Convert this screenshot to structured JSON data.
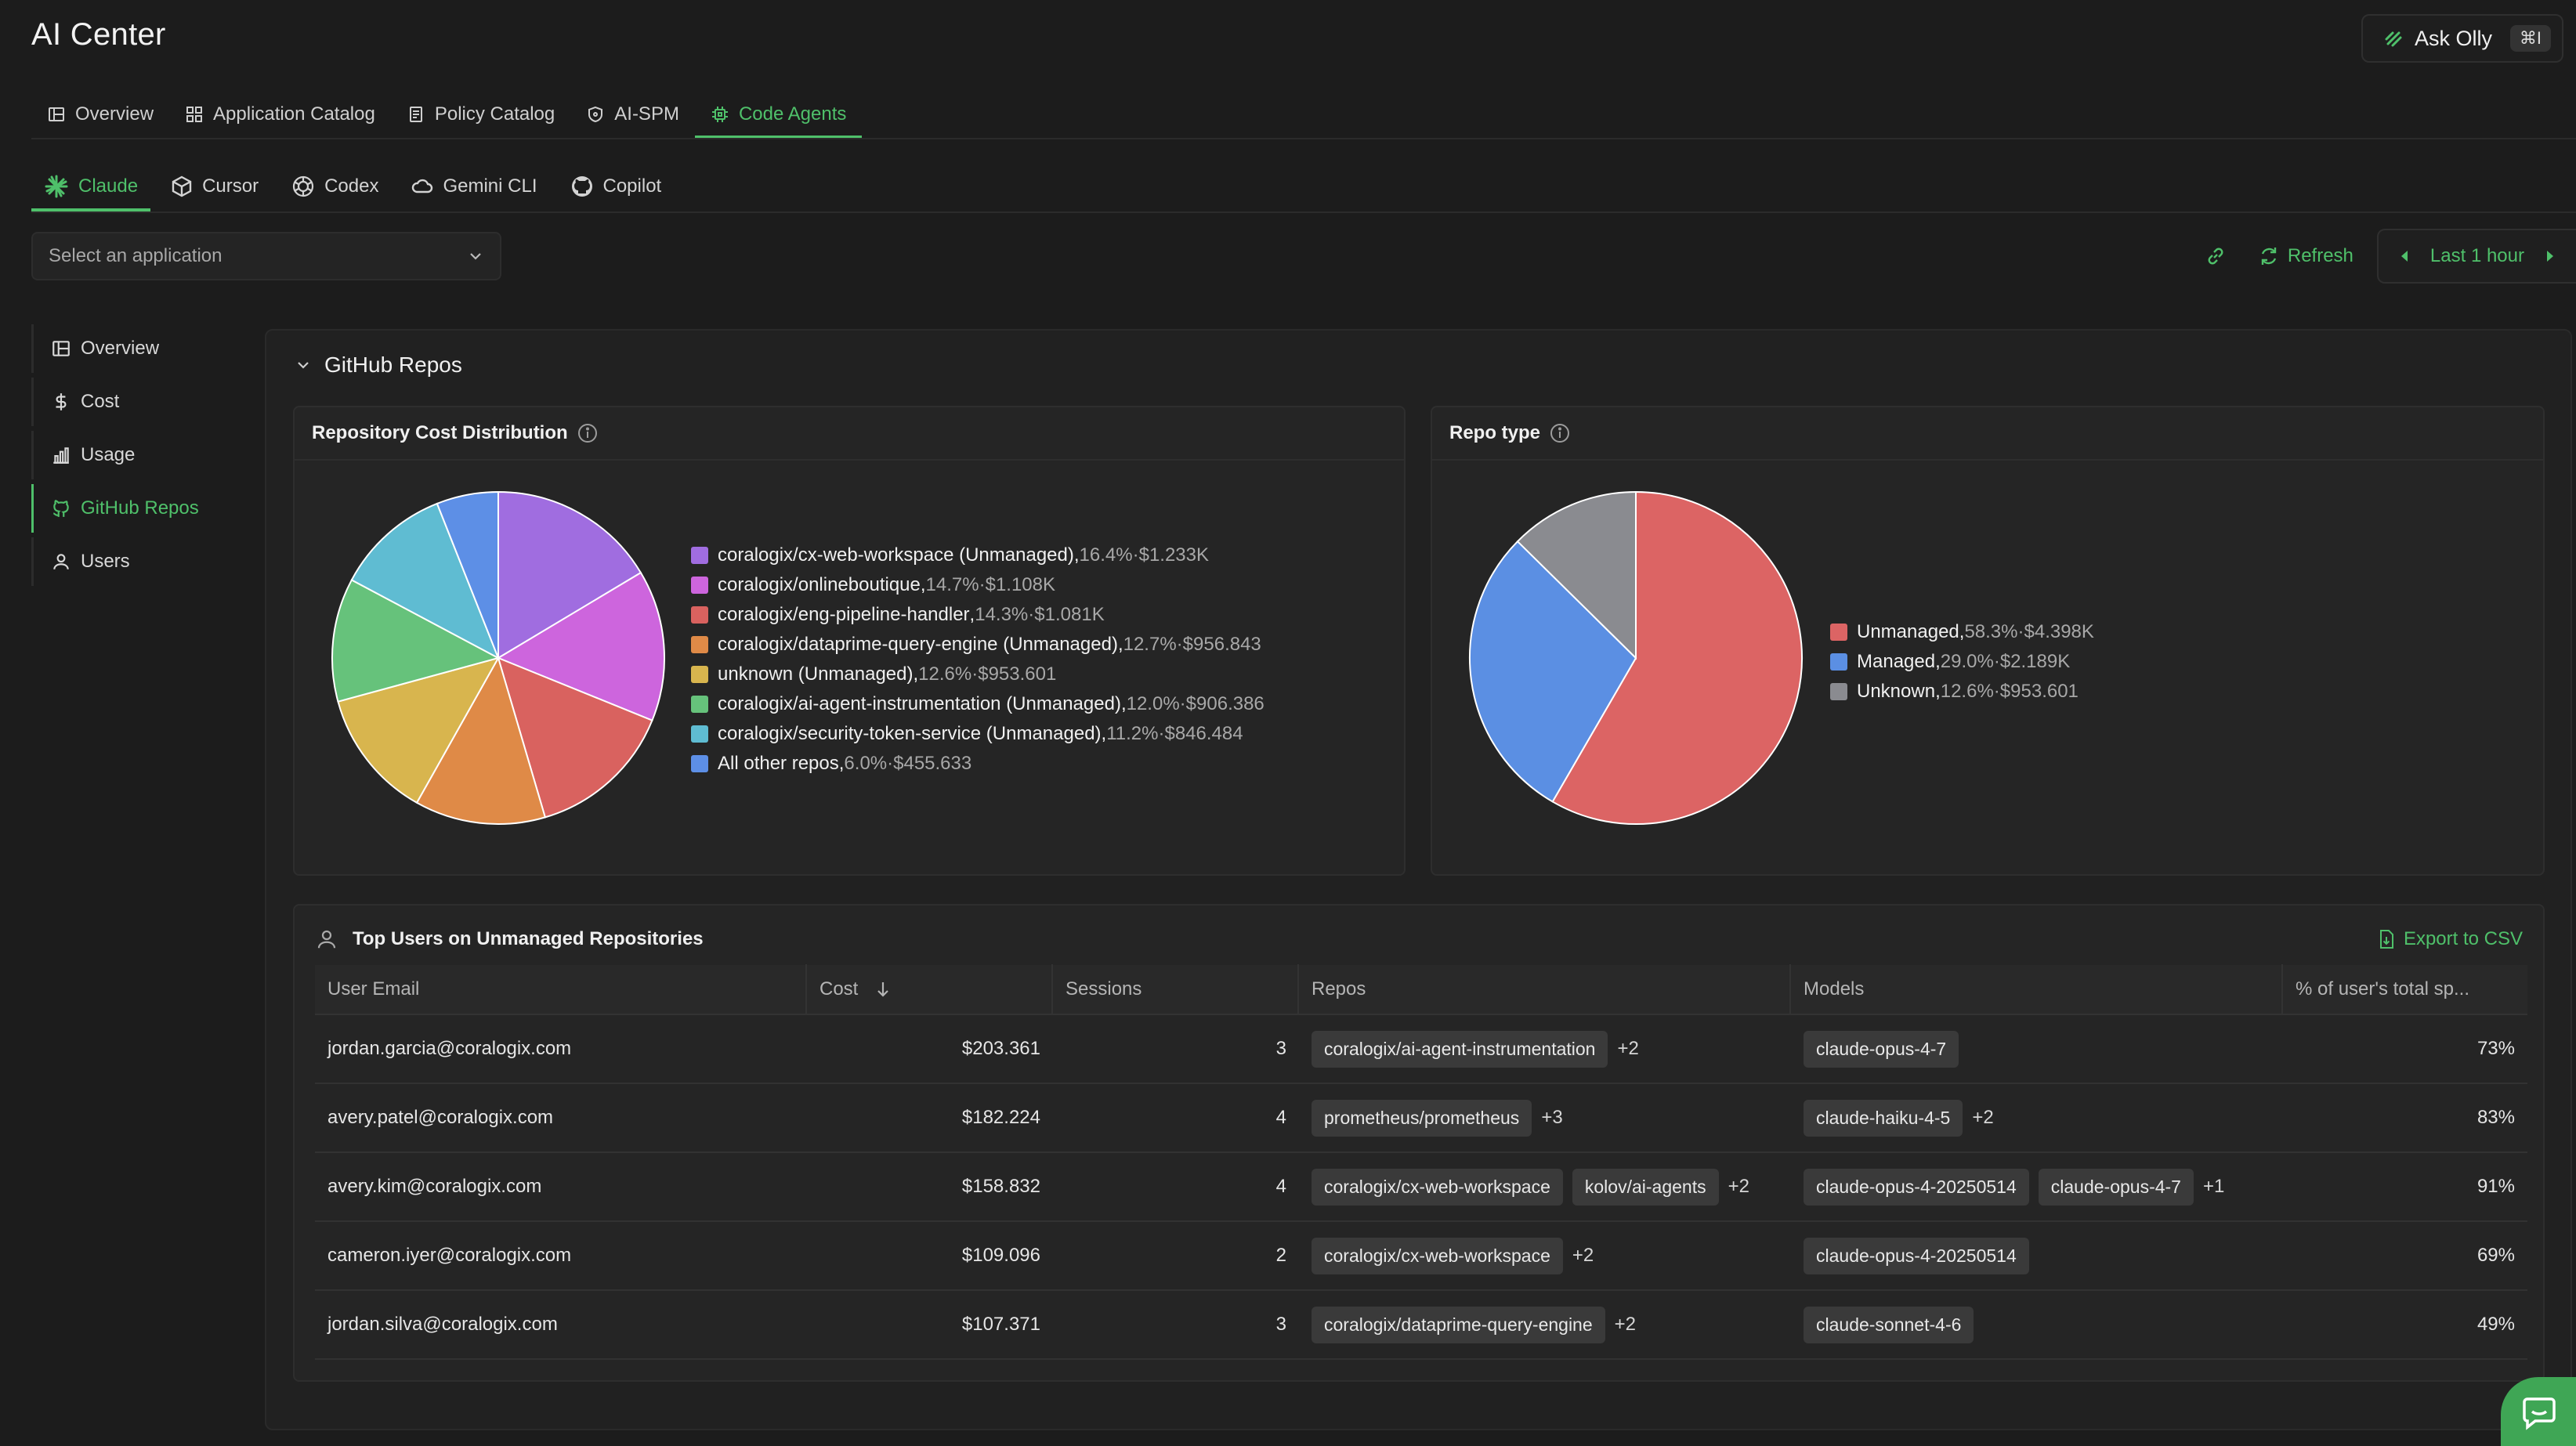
{
  "app": {
    "title": "AI Center"
  },
  "ask_olly": {
    "label": "Ask Olly",
    "shortcut": "⌘I"
  },
  "top_tabs": [
    {
      "label": "Overview",
      "icon": "layout-icon",
      "active": false
    },
    {
      "label": "Application Catalog",
      "icon": "grid-icon",
      "active": false
    },
    {
      "label": "Policy Catalog",
      "icon": "document-icon",
      "active": false
    },
    {
      "label": "AI-SPM",
      "icon": "shield-icon",
      "active": false
    },
    {
      "label": "Code Agents",
      "icon": "chip-icon",
      "active": true
    }
  ],
  "agent_tabs": [
    {
      "label": "Claude",
      "icon": "claude-icon",
      "active": true
    },
    {
      "label": "Cursor",
      "icon": "cube-icon",
      "active": false
    },
    {
      "label": "Codex",
      "icon": "openai-icon",
      "active": false
    },
    {
      "label": "Gemini CLI",
      "icon": "cloud-icon",
      "active": false
    },
    {
      "label": "Copilot",
      "icon": "github-icon",
      "active": false
    }
  ],
  "app_select": {
    "placeholder": "Select an application"
  },
  "toolbar": {
    "refresh_label": "Refresh",
    "time_range": "Last 1 hour"
  },
  "left_nav": [
    {
      "label": "Overview",
      "icon": "layout-icon",
      "active": false
    },
    {
      "label": "Cost",
      "icon": "dollar-icon",
      "active": false
    },
    {
      "label": "Usage",
      "icon": "bar-chart-icon",
      "active": false
    },
    {
      "label": "GitHub Repos",
      "icon": "github-icon",
      "active": true
    },
    {
      "label": "Users",
      "icon": "user-icon",
      "active": false
    }
  ],
  "section": {
    "title": "GitHub Repos"
  },
  "cost_chart": {
    "title": "Repository Cost Distribution"
  },
  "type_chart": {
    "title": "Repo type"
  },
  "chart_data": [
    {
      "type": "pie",
      "title": "Repository Cost Distribution",
      "slices": [
        {
          "label": "coralogix/cx-web-workspace (Unmanaged)",
          "pct": 16.4,
          "value": "$1.233K",
          "color": "#a06de0"
        },
        {
          "label": "coralogix/onlineboutique",
          "pct": 14.7,
          "value": "$1.108K",
          "color": "#cd65dd"
        },
        {
          "label": "coralogix/eng-pipeline-handler",
          "pct": 14.3,
          "value": "$1.081K",
          "color": "#d9625f"
        },
        {
          "label": "coralogix/dataprime-query-engine (Unmanaged)",
          "pct": 12.7,
          "value": "$956.843",
          "color": "#df8a47"
        },
        {
          "label": "unknown (Unmanaged)",
          "pct": 12.6,
          "value": "$953.601",
          "color": "#d8b54e"
        },
        {
          "label": "coralogix/ai-agent-instrumentation (Unmanaged)",
          "pct": 12.0,
          "value": "$906.386",
          "color": "#66c27b"
        },
        {
          "label": "coralogix/security-token-service (Unmanaged)",
          "pct": 11.2,
          "value": "$846.484",
          "color": "#5fbcd2"
        },
        {
          "label": "All other repos",
          "pct": 6.0,
          "value": "$455.633",
          "color": "#5d8fe6"
        }
      ]
    },
    {
      "type": "pie",
      "title": "Repo type",
      "slices": [
        {
          "label": "Unmanaged",
          "pct": 58.3,
          "value": "$4.398K",
          "color": "#dc6464"
        },
        {
          "label": "Managed",
          "pct": 29.0,
          "value": "$2.189K",
          "color": "#5b8fe3"
        },
        {
          "label": "Unknown",
          "pct": 12.6,
          "value": "$953.601",
          "color": "#8a8b90"
        }
      ]
    }
  ],
  "top_users": {
    "title": "Top Users on Unmanaged Repositories",
    "export_label": "Export to CSV",
    "columns": [
      "User Email",
      "Cost",
      "Sessions",
      "Repos",
      "Models",
      "% of user's total sp..."
    ],
    "rows": [
      {
        "email": "jordan.garcia@coralogix.com",
        "cost": "$203.361",
        "sessions": "3",
        "repos": [
          "coralogix/ai-agent-instrumentation"
        ],
        "repos_more": "+2",
        "models": [
          "claude-opus-4-7"
        ],
        "models_more": "",
        "pct": "73%"
      },
      {
        "email": "avery.patel@coralogix.com",
        "cost": "$182.224",
        "sessions": "4",
        "repos": [
          "prometheus/prometheus"
        ],
        "repos_more": "+3",
        "models": [
          "claude-haiku-4-5"
        ],
        "models_more": "+2",
        "pct": "83%"
      },
      {
        "email": "avery.kim@coralogix.com",
        "cost": "$158.832",
        "sessions": "4",
        "repos": [
          "coralogix/cx-web-workspace",
          "kolov/ai-agents"
        ],
        "repos_more": "+2",
        "models": [
          "claude-opus-4-20250514",
          "claude-opus-4-7"
        ],
        "models_more": "+1",
        "pct": "91%"
      },
      {
        "email": "cameron.iyer@coralogix.com",
        "cost": "$109.096",
        "sessions": "2",
        "repos": [
          "coralogix/cx-web-workspace"
        ],
        "repos_more": "+2",
        "models": [
          "claude-opus-4-20250514"
        ],
        "models_more": "",
        "pct": "69%"
      },
      {
        "email": "jordan.silva@coralogix.com",
        "cost": "$107.371",
        "sessions": "3",
        "repos": [
          "coralogix/dataprime-query-engine"
        ],
        "repos_more": "+2",
        "models": [
          "claude-sonnet-4-6"
        ],
        "models_more": "",
        "pct": "49%"
      }
    ]
  }
}
